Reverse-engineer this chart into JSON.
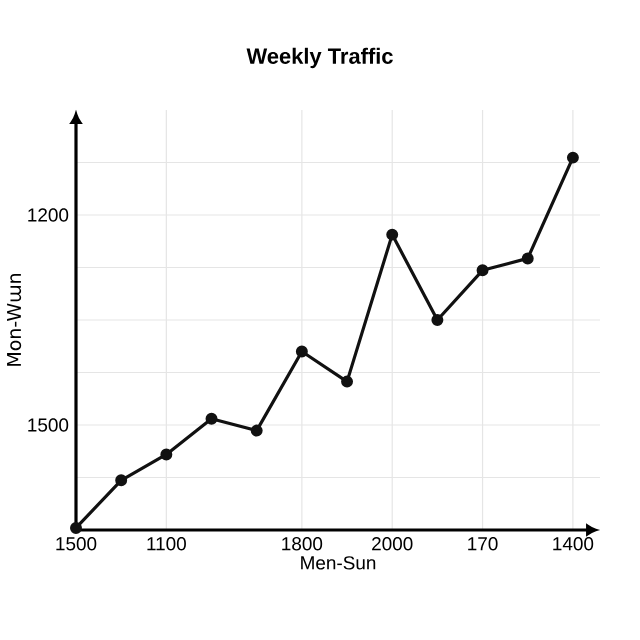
{
  "chart_data": {
    "type": "line",
    "title": "Weekly Traffic",
    "xlabel": "Men-Sun",
    "ylabel": "Mon-Wɯn",
    "categories": [
      "1500",
      null,
      "1100",
      null,
      null,
      "1800",
      null,
      "2000",
      null,
      "170",
      null,
      "1400"
    ],
    "values": [
      1647,
      1579,
      1542,
      1491,
      1508,
      1395,
      1438,
      1228,
      1350,
      1279,
      1262,
      1118
    ],
    "color": "#111111",
    "marker": "circle",
    "line_style": "solid",
    "grid": true,
    "ylim": [
      1650,
      1050
    ],
    "yticks": [
      {
        "value": 1125,
        "label": null
      },
      1200,
      {
        "value": 1275,
        "label": null
      },
      {
        "value": 1350,
        "label": null
      },
      {
        "value": 1425,
        "label": null
      },
      1500,
      {
        "value": 1575,
        "label": null
      }
    ]
  }
}
